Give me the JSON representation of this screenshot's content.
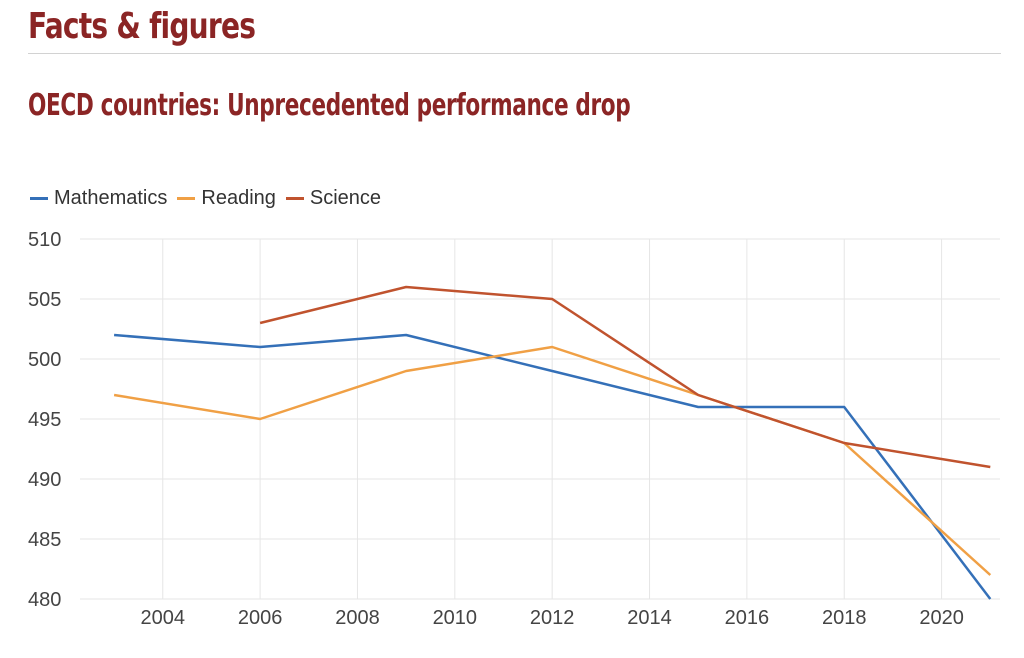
{
  "header": {
    "title": "Facts & figures"
  },
  "chart_data": {
    "type": "line",
    "title": "OECD countries: Unprecedented performance drop",
    "xlabel": "",
    "ylabel": "",
    "xlim": [
      2002.3,
      2021.2
    ],
    "ylim": [
      480,
      510
    ],
    "grid": true,
    "legend_position": "top-left",
    "x_ticks": [
      2004,
      2006,
      2008,
      2010,
      2012,
      2014,
      2016,
      2018,
      2020
    ],
    "y_ticks": [
      480,
      485,
      490,
      495,
      500,
      505,
      510
    ],
    "series": [
      {
        "name": "Mathematics",
        "color": "#3470b8",
        "x": [
          2003,
          2006,
          2009,
          2012,
          2015,
          2018,
          2021
        ],
        "values": [
          502,
          501,
          502,
          499,
          496,
          496,
          480
        ]
      },
      {
        "name": "Reading",
        "color": "#f0a045",
        "x": [
          2003,
          2006,
          2009,
          2012,
          2015,
          2018,
          2021
        ],
        "values": [
          497,
          495,
          499,
          501,
          497,
          493,
          482
        ]
      },
      {
        "name": "Science",
        "color": "#c0532e",
        "x": [
          2006,
          2009,
          2012,
          2015,
          2018,
          2021
        ],
        "values": [
          503,
          506,
          505,
          497,
          493,
          491
        ]
      }
    ]
  }
}
